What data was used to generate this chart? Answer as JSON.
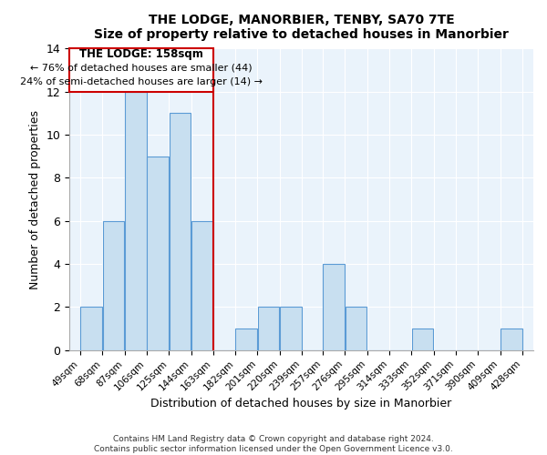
{
  "title": "THE LODGE, MANORBIER, TENBY, SA70 7TE",
  "subtitle": "Size of property relative to detached houses in Manorbier",
  "xlabel": "Distribution of detached houses by size in Manorbier",
  "ylabel": "Number of detached properties",
  "bin_labels": [
    "49sqm",
    "68sqm",
    "87sqm",
    "106sqm",
    "125sqm",
    "144sqm",
    "163sqm",
    "182sqm",
    "201sqm",
    "220sqm",
    "239sqm",
    "257sqm",
    "276sqm",
    "295sqm",
    "314sqm",
    "333sqm",
    "352sqm",
    "371sqm",
    "390sqm",
    "409sqm",
    "428sqm"
  ],
  "bar_heights": [
    2,
    6,
    12,
    9,
    11,
    6,
    0,
    1,
    2,
    2,
    0,
    4,
    2,
    0,
    0,
    1,
    0,
    0,
    0,
    1
  ],
  "bar_color": "#c8dff0",
  "bar_edge_color": "#5b9bd5",
  "highlight_line_color": "#cc0000",
  "annotation_box_edge_color": "#cc0000",
  "annotation_title": "THE LODGE: 158sqm",
  "annotation_line1": "← 76% of detached houses are smaller (44)",
  "annotation_line2": "24% of semi-detached houses are larger (14) →",
  "ylim": [
    0,
    14
  ],
  "yticks": [
    0,
    2,
    4,
    6,
    8,
    10,
    12,
    14
  ],
  "grid_color": "#c8dff0",
  "footer1": "Contains HM Land Registry data © Crown copyright and database right 2024.",
  "footer2": "Contains public sector information licensed under the Open Government Licence v3.0."
}
